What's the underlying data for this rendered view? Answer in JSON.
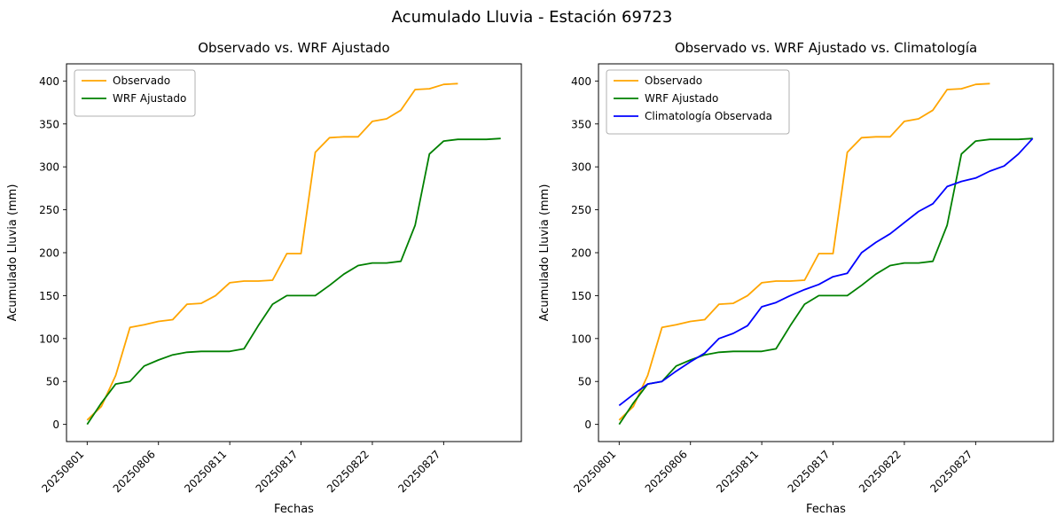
{
  "figure": {
    "title": "Acumulado Lluvia - Estación 69723",
    "background": "#ffffff"
  },
  "chart_data": [
    {
      "type": "line",
      "title": "Observado vs. WRF Ajustado",
      "xlabel": "Fechas",
      "ylabel": "Acumulado Lluvia (mm)",
      "ylim": [
        0,
        400
      ],
      "yticks": [
        0,
        50,
        100,
        150,
        200,
        250,
        300,
        350,
        400
      ],
      "xtick_positions": [
        0,
        5,
        10,
        15,
        20,
        25
      ],
      "xtick_labels": [
        "20250801",
        "20250806",
        "20250811",
        "20250817",
        "20250822",
        "20250827"
      ],
      "grid": false,
      "legend_position": "upper left",
      "series": [
        {
          "id": "observado",
          "name": "Observado",
          "color": "#ffa500",
          "values": [
            5,
            21,
            57,
            113,
            116,
            120,
            122,
            140,
            141,
            150,
            165,
            167,
            167,
            168,
            199,
            199,
            317,
            334,
            335,
            335,
            353,
            356,
            366,
            390,
            391,
            396,
            397
          ]
        },
        {
          "id": "wrf-ajustado",
          "name": "WRF Ajustado",
          "color": "#008000",
          "values": [
            0,
            25,
            47,
            50,
            68,
            75,
            81,
            84,
            85,
            85,
            85,
            88,
            115,
            140,
            150,
            150,
            150,
            162,
            175,
            185,
            188,
            188,
            190,
            232,
            315,
            330,
            332,
            332,
            332,
            333
          ]
        }
      ]
    },
    {
      "type": "line",
      "title": "Observado vs. WRF Ajustado vs. Climatología",
      "xlabel": "Fechas",
      "ylabel": "Acumulado Lluvia (mm)",
      "ylim": [
        0,
        400
      ],
      "yticks": [
        0,
        50,
        100,
        150,
        200,
        250,
        300,
        350,
        400
      ],
      "xtick_positions": [
        0,
        5,
        10,
        15,
        20,
        25
      ],
      "xtick_labels": [
        "20250801",
        "20250806",
        "20250811",
        "20250817",
        "20250822",
        "20250827"
      ],
      "grid": false,
      "legend_position": "upper left",
      "series": [
        {
          "id": "observado",
          "name": "Observado",
          "color": "#ffa500",
          "values": [
            5,
            21,
            57,
            113,
            116,
            120,
            122,
            140,
            141,
            150,
            165,
            167,
            167,
            168,
            199,
            199,
            317,
            334,
            335,
            335,
            353,
            356,
            366,
            390,
            391,
            396,
            397
          ]
        },
        {
          "id": "wrf-ajustado",
          "name": "WRF Ajustado",
          "color": "#008000",
          "values": [
            0,
            25,
            47,
            50,
            68,
            75,
            81,
            84,
            85,
            85,
            85,
            88,
            115,
            140,
            150,
            150,
            150,
            162,
            175,
            185,
            188,
            188,
            190,
            232,
            315,
            330,
            332,
            332,
            332,
            333
          ]
        },
        {
          "id": "climatologia-observada",
          "name": "Climatología Observada",
          "color": "#0000ff",
          "values": [
            22,
            35,
            47,
            50,
            62,
            73,
            83,
            100,
            106,
            115,
            137,
            142,
            150,
            157,
            163,
            172,
            176,
            200,
            212,
            222,
            235,
            248,
            257,
            277,
            283,
            287,
            295,
            301,
            315,
            333
          ]
        }
      ]
    }
  ]
}
